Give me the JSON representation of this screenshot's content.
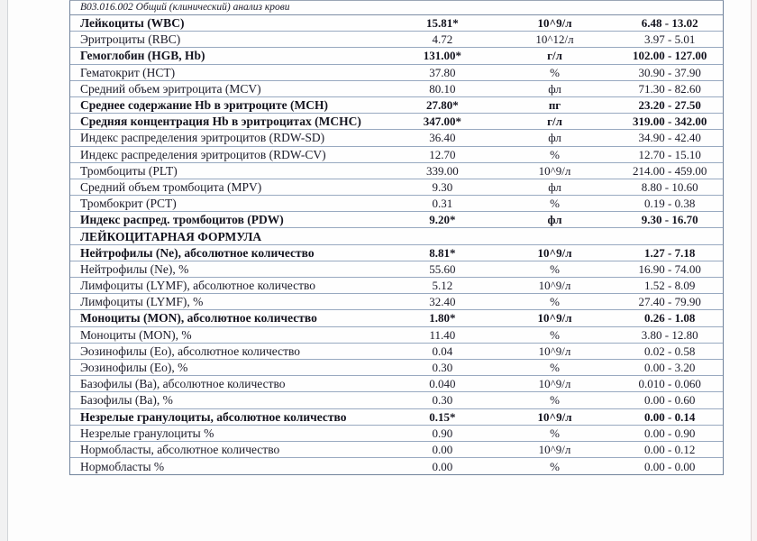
{
  "page": {
    "procedure_title": "B03.016.002 Общий (клинический) анализ крови"
  },
  "colors": {
    "text": "#1a1a28",
    "outer_border": "#70829b",
    "row_border": "#98a9c0"
  },
  "table": {
    "rows": [
      {
        "name": "Лейкоциты (WBC)",
        "value": "15.81*",
        "unit": "10^9/л",
        "range": "6.48 - 13.02",
        "bold": true,
        "section": false
      },
      {
        "name": "Эритроциты (RBC)",
        "value": "4.72",
        "unit": "10^12/л",
        "range": "3.97 - 5.01",
        "bold": false,
        "section": false
      },
      {
        "name": "Гемоглобин (HGB, Hb)",
        "value": "131.00*",
        "unit": "г/л",
        "range": "102.00 - 127.00",
        "bold": true,
        "section": false
      },
      {
        "name": "Гематокрит (HCT)",
        "value": "37.80",
        "unit": "%",
        "range": "30.90 - 37.90",
        "bold": false,
        "section": false
      },
      {
        "name": "Средний объем эритроцита (MCV)",
        "value": "80.10",
        "unit": "фл",
        "range": "71.30 - 82.60",
        "bold": false,
        "section": false
      },
      {
        "name": "Среднее содержание Hb в эритроците (MCH)",
        "value": "27.80*",
        "unit": "пг",
        "range": "23.20 - 27.50",
        "bold": true,
        "section": false
      },
      {
        "name": "Средняя концентрация Hb в эритроцитах (MCHC)",
        "value": "347.00*",
        "unit": "г/л",
        "range": "319.00 - 342.00",
        "bold": true,
        "section": false
      },
      {
        "name": "Индекс распределения эритроцитов (RDW-SD)",
        "value": "36.40",
        "unit": "фл",
        "range": "34.90 - 42.40",
        "bold": false,
        "section": false
      },
      {
        "name": "Индекс распределения эритроцитов (RDW-CV)",
        "value": "12.70",
        "unit": "%",
        "range": "12.70 - 15.10",
        "bold": false,
        "section": false
      },
      {
        "name": "Тромбоциты (PLT)",
        "value": "339.00",
        "unit": "10^9/л",
        "range": "214.00 - 459.00",
        "bold": false,
        "section": false
      },
      {
        "name": "Средний объем тромбоцита (MPV)",
        "value": "9.30",
        "unit": "фл",
        "range": "8.80 - 10.60",
        "bold": false,
        "section": false
      },
      {
        "name": "Тромбокрит (PCT)",
        "value": "0.31",
        "unit": "%",
        "range": "0.19 - 0.38",
        "bold": false,
        "section": false
      },
      {
        "name": "Индекс распред. тромбоцитов (PDW)",
        "value": "9.20*",
        "unit": "фл",
        "range": "9.30 - 16.70",
        "bold": true,
        "section": false
      },
      {
        "name": "ЛЕЙКОЦИТАРНАЯ ФОРМУЛА",
        "value": "",
        "unit": "",
        "range": "",
        "bold": true,
        "section": true
      },
      {
        "name": "Нейтрофилы (Ne), абсолютное количество",
        "value": "8.81*",
        "unit": "10^9/л",
        "range": "1.27 - 7.18",
        "bold": true,
        "section": false
      },
      {
        "name": "Нейтрофилы (Ne), %",
        "value": "55.60",
        "unit": "%",
        "range": "16.90 - 74.00",
        "bold": false,
        "section": false
      },
      {
        "name": "Лимфоциты (LYMF), абсолютное количество",
        "value": "5.12",
        "unit": "10^9/л",
        "range": "1.52 - 8.09",
        "bold": false,
        "section": false
      },
      {
        "name": "Лимфоциты (LYMF), %",
        "value": "32.40",
        "unit": "%",
        "range": "27.40 - 79.90",
        "bold": false,
        "section": false
      },
      {
        "name": "Моноциты (MON), абсолютное количество",
        "value": "1.80*",
        "unit": "10^9/л",
        "range": "0.26 - 1.08",
        "bold": true,
        "section": false
      },
      {
        "name": "Моноциты (MON), %",
        "value": "11.40",
        "unit": "%",
        "range": "3.80 - 12.80",
        "bold": false,
        "section": false
      },
      {
        "name": "Эозинофилы (Eo), абсолютное количество",
        "value": "0.04",
        "unit": "10^9/л",
        "range": "0.02 - 0.58",
        "bold": false,
        "section": false
      },
      {
        "name": "Эозинофилы (Eo), %",
        "value": "0.30",
        "unit": "%",
        "range": "0.00 - 3.20",
        "bold": false,
        "section": false
      },
      {
        "name": "Базофилы (Ba), абсолютное количество",
        "value": "0.040",
        "unit": "10^9/л",
        "range": "0.010 - 0.060",
        "bold": false,
        "section": false
      },
      {
        "name": "Базофилы (Ba), %",
        "value": "0.30",
        "unit": "%",
        "range": "0.00 - 0.60",
        "bold": false,
        "section": false
      },
      {
        "name": "Незрелые гранулоциты, абсолютное количество",
        "value": "0.15*",
        "unit": "10^9/л",
        "range": "0.00 - 0.14",
        "bold": true,
        "section": false
      },
      {
        "name": "Незрелые гранулоциты %",
        "value": "0.90",
        "unit": "%",
        "range": "0.00 - 0.90",
        "bold": false,
        "section": false
      },
      {
        "name": "Нормобласты, абсолютное количество",
        "value": "0.00",
        "unit": "10^9/л",
        "range": "0.00 - 0.12",
        "bold": false,
        "section": false
      },
      {
        "name": "Нормобласты %",
        "value": "0.00",
        "unit": "%",
        "range": "0.00 - 0.00",
        "bold": false,
        "section": false
      }
    ]
  }
}
